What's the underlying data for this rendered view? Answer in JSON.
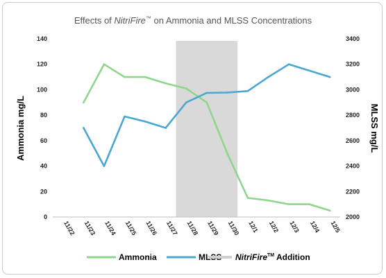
{
  "chart_data": {
    "type": "line",
    "title_parts": [
      "Effects of ",
      "NitriFire",
      "™",
      " on Ammonia and MLSS Concentrations"
    ],
    "categories": [
      "11/22",
      "11/23",
      "11/24",
      "11/25",
      "11/26",
      "11/27",
      "11/28",
      "11/29",
      "11/30",
      "12/1",
      "12/2",
      "12/3",
      "12/4",
      "12/5"
    ],
    "y_left": {
      "label": "Ammonia mg/L",
      "min": 0,
      "max": 140,
      "ticks": [
        "0",
        "20",
        "40",
        "60",
        "80",
        "100",
        "120",
        "140"
      ]
    },
    "y_right": {
      "label": "MLSS mg/L",
      "min": 2000,
      "max": 3400,
      "ticks": [
        "2000",
        "2200",
        "2400",
        "2600",
        "2800",
        "3000",
        "3200",
        "3400"
      ]
    },
    "series": [
      {
        "name": "Ammonia",
        "axis": "left",
        "color": "#8fd68d",
        "values": [
          null,
          90,
          120,
          110,
          110,
          105,
          101,
          90,
          50,
          15,
          13,
          10,
          10,
          5
        ]
      },
      {
        "name": "MLSS",
        "axis": "right",
        "color": "#4aa7d0",
        "values": [
          null,
          2700,
          2400,
          2790,
          2750,
          2700,
          2900,
          2975,
          2978,
          2990,
          3100,
          3200,
          3150,
          3100
        ]
      }
    ],
    "shaded_region": {
      "label_parts": [
        "NitriFire",
        "TM",
        " Addition"
      ],
      "from": "11/28",
      "to": "11/30",
      "color": "#d9d9d9"
    },
    "legend": {
      "position": "bottom"
    },
    "grid": false
  }
}
